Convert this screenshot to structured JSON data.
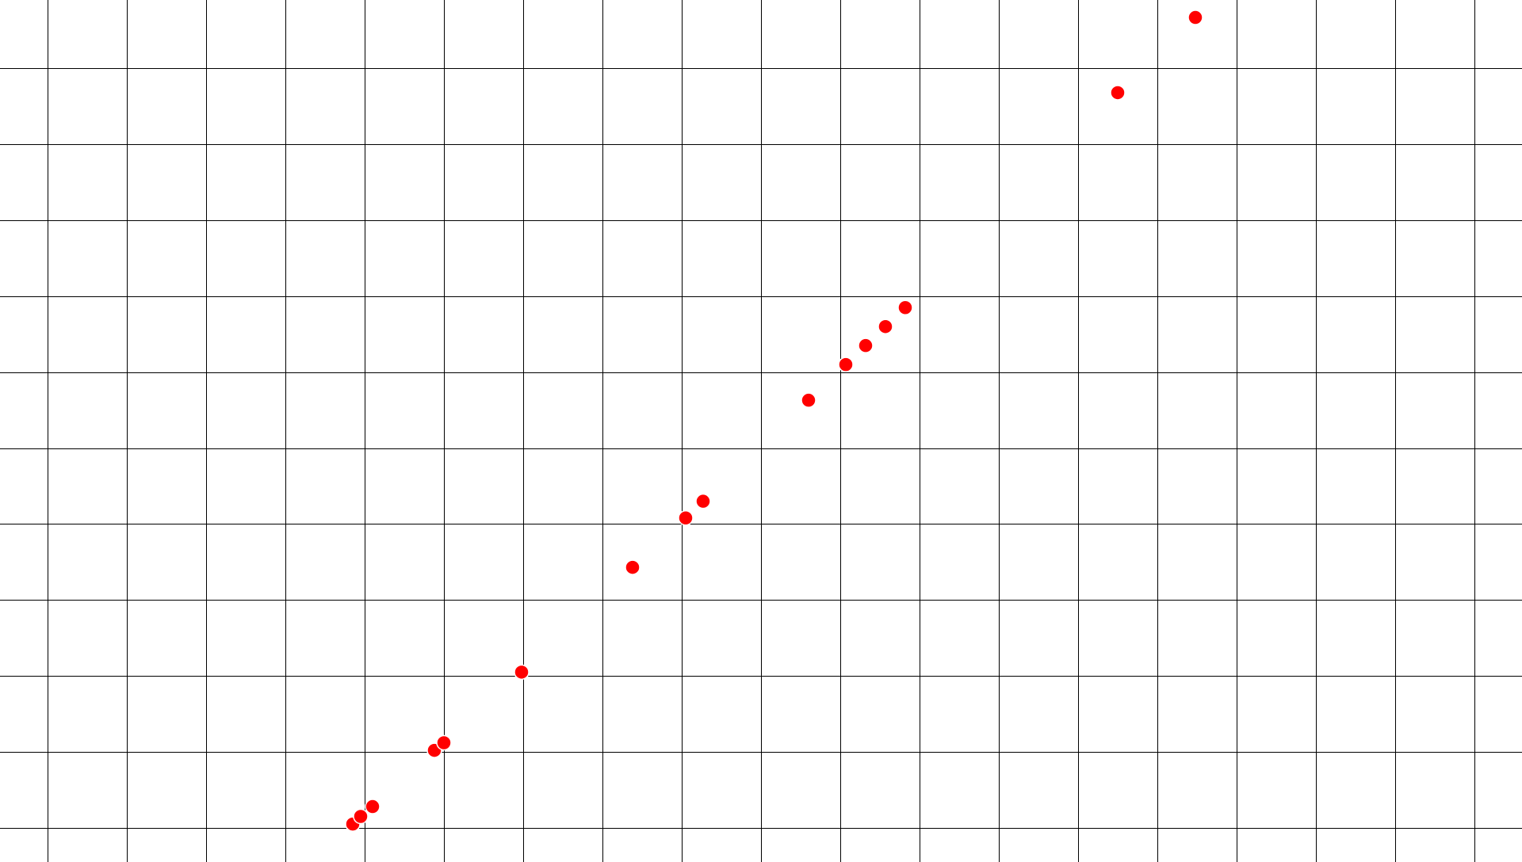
{
  "chart_data": {
    "type": "scatter",
    "title": "",
    "xlabel": "",
    "ylabel": "",
    "grid": true,
    "legend": "none",
    "xlim": [
      -0.6,
      18.6
    ],
    "ylim": [
      -0.45,
      10.9
    ],
    "grid_x": [
      0,
      1,
      2,
      3,
      4,
      5,
      6,
      7,
      8,
      9,
      10,
      11,
      12,
      13,
      14,
      15,
      16,
      17,
      18
    ],
    "grid_y": [
      0,
      1,
      2,
      3,
      4,
      5,
      6,
      7,
      8,
      9,
      10
    ],
    "point_color": "#ff0000",
    "gridline_color": "#000000",
    "background_color": "#ffffff",
    "series": [
      {
        "points": [
          {
            "x": 3.85,
            "y": 0.05
          },
          {
            "x": 3.95,
            "y": 0.15
          },
          {
            "x": 4.1,
            "y": 0.28
          },
          {
            "x": 4.88,
            "y": 1.02
          },
          {
            "x": 5.0,
            "y": 1.12
          },
          {
            "x": 5.98,
            "y": 2.05
          },
          {
            "x": 7.38,
            "y": 3.43
          },
          {
            "x": 8.05,
            "y": 4.08
          },
          {
            "x": 8.27,
            "y": 4.3
          },
          {
            "x": 9.6,
            "y": 5.63
          },
          {
            "x": 10.07,
            "y": 6.1
          },
          {
            "x": 10.32,
            "y": 6.35
          },
          {
            "x": 10.57,
            "y": 6.6
          },
          {
            "x": 10.82,
            "y": 6.85
          },
          {
            "x": 13.5,
            "y": 9.68
          },
          {
            "x": 14.48,
            "y": 10.67
          }
        ]
      }
    ]
  }
}
